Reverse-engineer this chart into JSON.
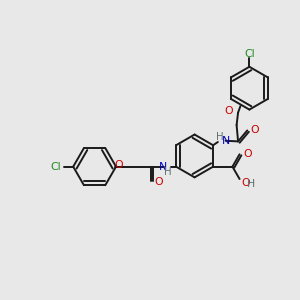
{
  "background_color": "#e8e8e8",
  "bond_color": "#1a1a1a",
  "atom_colors": {
    "O": "#cc0000",
    "N": "#0000cc",
    "Cl": "#228b22",
    "H": "#607070",
    "C": "#1a1a1a"
  },
  "figsize": [
    3.0,
    3.0
  ],
  "dpi": 100
}
